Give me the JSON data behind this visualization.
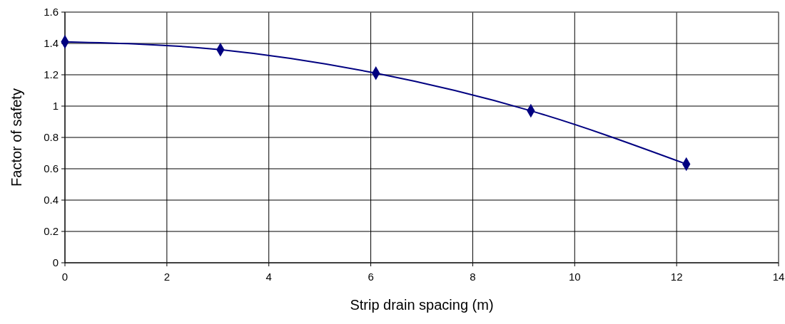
{
  "chart_data": {
    "type": "line",
    "xlabel": "Strip drain spacing (m)",
    "ylabel": "Factor of safety",
    "x": [
      0,
      3.05,
      6.1,
      9.14,
      12.19
    ],
    "series": [
      {
        "color": "#000080",
        "values": [
          1.41,
          1.36,
          1.21,
          0.97,
          0.63
        ]
      }
    ],
    "xlim": [
      0,
      14
    ],
    "xticks": [
      0,
      2,
      4,
      6,
      8,
      10,
      12,
      14
    ],
    "ylim": [
      0,
      1.6
    ],
    "yticks": [
      0,
      0.2,
      0.4,
      0.6,
      0.8,
      1,
      1.2,
      1.4,
      1.6
    ],
    "grid": true,
    "marker": "diamond",
    "line_style": "solid"
  }
}
